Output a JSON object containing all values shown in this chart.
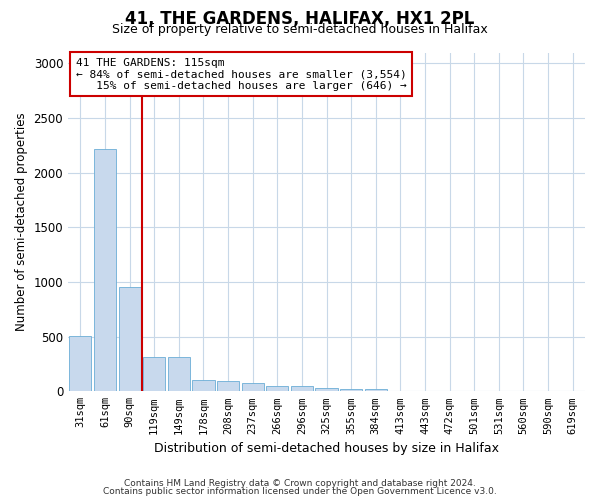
{
  "title": "41, THE GARDENS, HALIFAX, HX1 2PL",
  "subtitle": "Size of property relative to semi-detached houses in Halifax",
  "xlabel": "Distribution of semi-detached houses by size in Halifax",
  "ylabel": "Number of semi-detached properties",
  "footer1": "Contains HM Land Registry data © Crown copyright and database right 2024.",
  "footer2": "Contains public sector information licensed under the Open Government Licence v3.0.",
  "bin_labels": [
    "31sqm",
    "61sqm",
    "90sqm",
    "119sqm",
    "149sqm",
    "178sqm",
    "208sqm",
    "237sqm",
    "266sqm",
    "296sqm",
    "325sqm",
    "355sqm",
    "384sqm",
    "413sqm",
    "443sqm",
    "472sqm",
    "501sqm",
    "531sqm",
    "560sqm",
    "590sqm",
    "619sqm"
  ],
  "bar_values": [
    510,
    2220,
    950,
    310,
    310,
    100,
    90,
    80,
    50,
    45,
    30,
    25,
    20,
    5,
    5,
    0,
    0,
    0,
    0,
    0,
    0
  ],
  "bar_color": "#c8d9ed",
  "bar_edge_color": "#6baed6",
  "ylim": [
    0,
    3100
  ],
  "yticks": [
    0,
    500,
    1000,
    1500,
    2000,
    2500,
    3000
  ],
  "red_line_x": 2.5,
  "red_line_color": "#cc0000",
  "annotation_line1": "41 THE GARDENS: 115sqm",
  "annotation_line2": "← 84% of semi-detached houses are smaller (3,554)",
  "annotation_line3": "   15% of semi-detached houses are larger (646) →",
  "annotation_box_color": "#ffffff",
  "annotation_box_edge": "#cc0000",
  "background_color": "#ffffff",
  "grid_color": "#c8d8e8"
}
